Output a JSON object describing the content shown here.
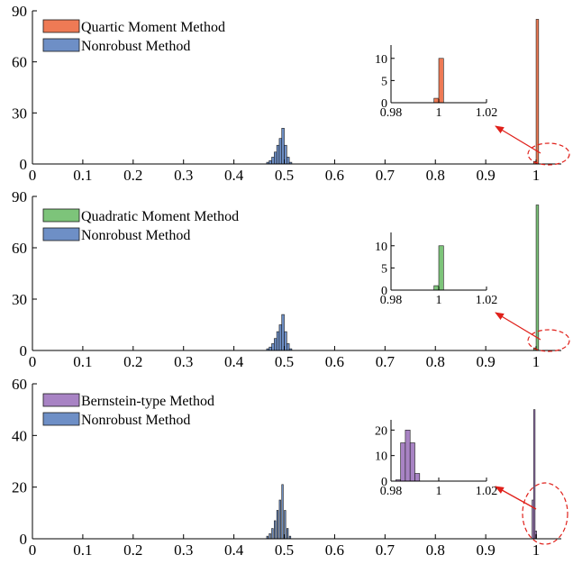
{
  "chart_data": [
    {
      "type": "bar",
      "xlim": [
        0,
        1.05
      ],
      "ylim": [
        0,
        90
      ],
      "xticks": [
        0,
        0.1,
        0.2,
        0.3,
        0.4,
        0.5,
        0.6,
        0.7,
        0.8,
        0.9,
        1
      ],
      "xtick_labels": [
        "0",
        "0.1",
        "0.2",
        "0.3",
        "0.4",
        "0.5",
        "0.6",
        "0.7",
        "0.8",
        "0.9",
        "1"
      ],
      "yticks": [
        0,
        30,
        60,
        90
      ],
      "ytick_labels": [
        "0",
        "30",
        "60",
        "90"
      ],
      "bin_width": 0.005,
      "series": [
        {
          "name": "Quartic Moment Method",
          "color": "#EE7A55",
          "bins": [
            [
              0.995,
              1.5
            ],
            [
              1.0,
              85
            ]
          ]
        },
        {
          "name": "Nonrobust Method",
          "color": "#6E8FC6",
          "bins": [
            [
              0.465,
              1
            ],
            [
              0.47,
              2
            ],
            [
              0.475,
              4
            ],
            [
              0.48,
              7
            ],
            [
              0.485,
              11
            ],
            [
              0.49,
              15
            ],
            [
              0.495,
              21
            ],
            [
              0.5,
              11
            ],
            [
              0.505,
              4
            ],
            [
              0.51,
              1
            ]
          ]
        }
      ],
      "legend_position": "top-left",
      "inset": {
        "xlim": [
          0.98,
          1.02
        ],
        "ylim": [
          0,
          13
        ],
        "xticks": [
          0.98,
          1,
          1.02
        ],
        "xtick_labels": [
          "0.98",
          "1",
          "1.02"
        ],
        "yticks": [
          0,
          5,
          10
        ],
        "ytick_labels": [
          "0",
          "5",
          "10"
        ],
        "bin_width": 0.002,
        "color": "#EE7A55",
        "bins": [
          [
            0.998,
            1
          ],
          [
            1.0,
            10
          ]
        ]
      }
    },
    {
      "type": "bar",
      "xlim": [
        0,
        1.05
      ],
      "ylim": [
        0,
        90
      ],
      "xticks": [
        0,
        0.1,
        0.2,
        0.3,
        0.4,
        0.5,
        0.6,
        0.7,
        0.8,
        0.9,
        1
      ],
      "xtick_labels": [
        "0",
        "0.1",
        "0.2",
        "0.3",
        "0.4",
        "0.5",
        "0.6",
        "0.7",
        "0.8",
        "0.9",
        "1"
      ],
      "yticks": [
        0,
        30,
        60,
        90
      ],
      "ytick_labels": [
        "0",
        "30",
        "60",
        "90"
      ],
      "bin_width": 0.005,
      "series": [
        {
          "name": "Quadratic Moment Method",
          "color": "#7DC47A",
          "bins": [
            [
              0.995,
              1.5
            ],
            [
              1.0,
              85
            ]
          ]
        },
        {
          "name": "Nonrobust Method",
          "color": "#6E8FC6",
          "bins": [
            [
              0.465,
              1
            ],
            [
              0.47,
              2
            ],
            [
              0.475,
              4
            ],
            [
              0.48,
              7
            ],
            [
              0.485,
              11
            ],
            [
              0.49,
              15
            ],
            [
              0.495,
              21
            ],
            [
              0.5,
              11
            ],
            [
              0.505,
              4
            ],
            [
              0.51,
              1
            ]
          ]
        }
      ],
      "legend_position": "top-left",
      "inset": {
        "xlim": [
          0.98,
          1.02
        ],
        "ylim": [
          0,
          13
        ],
        "xticks": [
          0.98,
          1,
          1.02
        ],
        "xtick_labels": [
          "0.98",
          "1",
          "1.02"
        ],
        "yticks": [
          0,
          5,
          10
        ],
        "ytick_labels": [
          "0",
          "5",
          "10"
        ],
        "bin_width": 0.002,
        "color": "#7DC47A",
        "bins": [
          [
            0.998,
            1
          ],
          [
            1.0,
            10
          ]
        ]
      }
    },
    {
      "type": "bar",
      "xlim": [
        0,
        1.05
      ],
      "ylim": [
        0,
        60
      ],
      "xticks": [
        0,
        0.1,
        0.2,
        0.3,
        0.4,
        0.5,
        0.6,
        0.7,
        0.8,
        0.9,
        1
      ],
      "xtick_labels": [
        "0",
        "0.1",
        "0.2",
        "0.3",
        "0.4",
        "0.5",
        "0.6",
        "0.7",
        "0.8",
        "0.9",
        "1"
      ],
      "yticks": [
        0,
        20,
        40,
        60
      ],
      "ytick_labels": [
        "0",
        "20",
        "40",
        "60"
      ],
      "bin_width": 0.003,
      "series": [
        {
          "name": "Bernstein-type Method",
          "color": "#A883C4",
          "bins": [
            [
              0.992,
              15
            ],
            [
              0.995,
              50
            ],
            [
              0.998,
              3
            ]
          ]
        },
        {
          "name": "Nonrobust Method",
          "color": "#6E8FC6",
          "bins": [
            [
              0.465,
              1
            ],
            [
              0.47,
              2
            ],
            [
              0.475,
              4
            ],
            [
              0.48,
              7
            ],
            [
              0.485,
              11
            ],
            [
              0.49,
              15
            ],
            [
              0.495,
              21
            ],
            [
              0.5,
              11
            ],
            [
              0.505,
              4
            ],
            [
              0.51,
              1
            ]
          ]
        }
      ],
      "legend_position": "top-left",
      "inset": {
        "xlim": [
          0.98,
          1.02
        ],
        "ylim": [
          0,
          24
        ],
        "xticks": [
          0.98,
          1,
          1.02
        ],
        "xtick_labels": [
          "0.98",
          "1",
          "1.02"
        ],
        "yticks": [
          0,
          10,
          20
        ],
        "ytick_labels": [
          "0",
          "10",
          "20"
        ],
        "bin_width": 0.002,
        "color": "#A883C4",
        "bins": [
          [
            0.982,
            0.5
          ],
          [
            0.984,
            15
          ],
          [
            0.986,
            20
          ],
          [
            0.988,
            15
          ],
          [
            0.99,
            3
          ]
        ]
      }
    }
  ]
}
